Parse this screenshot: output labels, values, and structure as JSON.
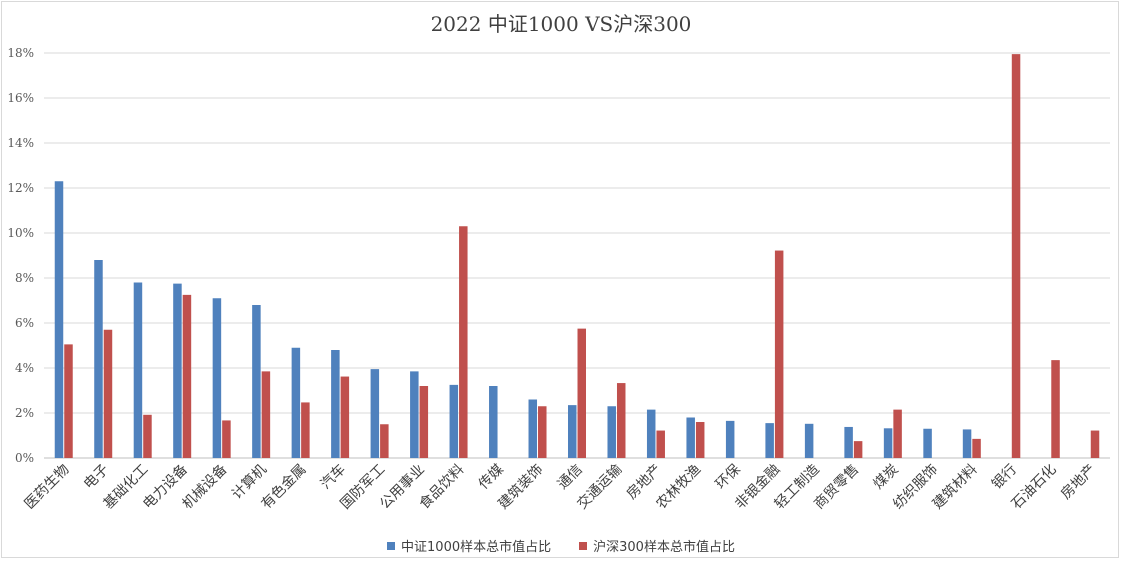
{
  "chart_data": {
    "type": "bar",
    "title": "2022 中证1000 VS沪深300",
    "xlabel": "",
    "ylabel": "",
    "ylim": [
      0,
      18
    ],
    "yticks": [
      "0%",
      "2%",
      "4%",
      "6%",
      "8%",
      "10%",
      "12%",
      "14%",
      "16%",
      "18%"
    ],
    "ytick_values": [
      0,
      2,
      4,
      6,
      8,
      10,
      12,
      14,
      16,
      18
    ],
    "grid": true,
    "legend_position": "bottom",
    "categories": [
      "医药生物",
      "电子",
      "基础化工",
      "电力设备",
      "机械设备",
      "计算机",
      "有色金属",
      "汽车",
      "国防军工",
      "公用事业",
      "食品饮料",
      "传媒",
      "建筑装饰",
      "通信",
      "交通运输",
      "房地产",
      "农林牧渔",
      "环保",
      "非银金融",
      "轻工制造",
      "商贸零售",
      "煤炭",
      "纺织服饰",
      "建筑材料",
      "银行",
      "石油石化",
      "房地产"
    ],
    "series": [
      {
        "name": "中证1000样本总市值占比",
        "color": "#4f81bd",
        "values": [
          12.3,
          8.8,
          7.8,
          7.75,
          7.1,
          6.8,
          4.9,
          4.8,
          3.95,
          3.85,
          3.25,
          3.2,
          2.6,
          2.35,
          2.3,
          2.15,
          1.8,
          1.65,
          1.55,
          1.52,
          1.38,
          1.32,
          1.3,
          1.27,
          0,
          0,
          0
        ]
      },
      {
        "name": "沪深300样本总市值占比",
        "color": "#c0504d",
        "values": [
          5.05,
          5.7,
          1.92,
          7.25,
          1.67,
          3.85,
          2.47,
          3.62,
          1.5,
          3.2,
          10.3,
          0,
          2.3,
          5.75,
          3.33,
          1.22,
          1.6,
          0,
          9.22,
          0,
          0.75,
          2.15,
          0,
          0.85,
          17.95,
          4.35,
          1.22
        ]
      }
    ]
  }
}
